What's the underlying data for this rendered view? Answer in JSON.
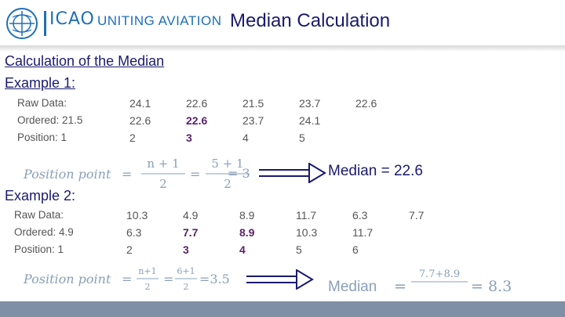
{
  "header": {
    "brand": "ICAO",
    "tagline": "UNITING AVIATION",
    "title": "Median Calculation"
  },
  "section_title": "Calculation of the Median",
  "example1": {
    "title": "Example 1:",
    "raw_label": "Raw Data:",
    "ordered_label": "Ordered:",
    "position_label": "Position:",
    "raw": [
      "24.1",
      "22.6",
      "21.5",
      "23.7",
      "22.6"
    ],
    "ordered": [
      "21.5",
      "22.6",
      "22.6",
      "23.7",
      "24.1"
    ],
    "positions": [
      "1",
      "2",
      "3",
      "4",
      "5"
    ],
    "formula": {
      "lhs": "Position point",
      "eq": "=",
      "num1": "n + 1",
      "den1": "2",
      "num2": "5 + 1",
      "den2": "2",
      "result": "= 3"
    },
    "median_text": "Median = 22.6"
  },
  "example2": {
    "title": "Example 2:",
    "raw_label": "Raw Data:",
    "ordered_label": "Ordered:",
    "position_label": "Position:",
    "raw": [
      "10.3",
      "4.9",
      "8.9",
      "11.7",
      "6.3",
      "7.7"
    ],
    "ordered": [
      "4.9",
      "6.3",
      "7.7",
      "8.9",
      "10.3",
      "11.7"
    ],
    "positions": [
      "1",
      "2",
      "3",
      "4",
      "5",
      "6"
    ],
    "formula": {
      "lhs": "Position point",
      "eq": "=",
      "num1": "n+1",
      "den1": "2",
      "num2": "6+1",
      "den2": "2",
      "result": "=3.5"
    },
    "median_formula": {
      "lhs": "Median",
      "eq": "=",
      "num": "7.7+8.9",
      "result": "= 8.3"
    }
  },
  "colors": {
    "accent": "#1a1a6e",
    "logo": "#1f6fb8",
    "highlight": "#5b1f6a",
    "footer": "#7f8fa6"
  }
}
